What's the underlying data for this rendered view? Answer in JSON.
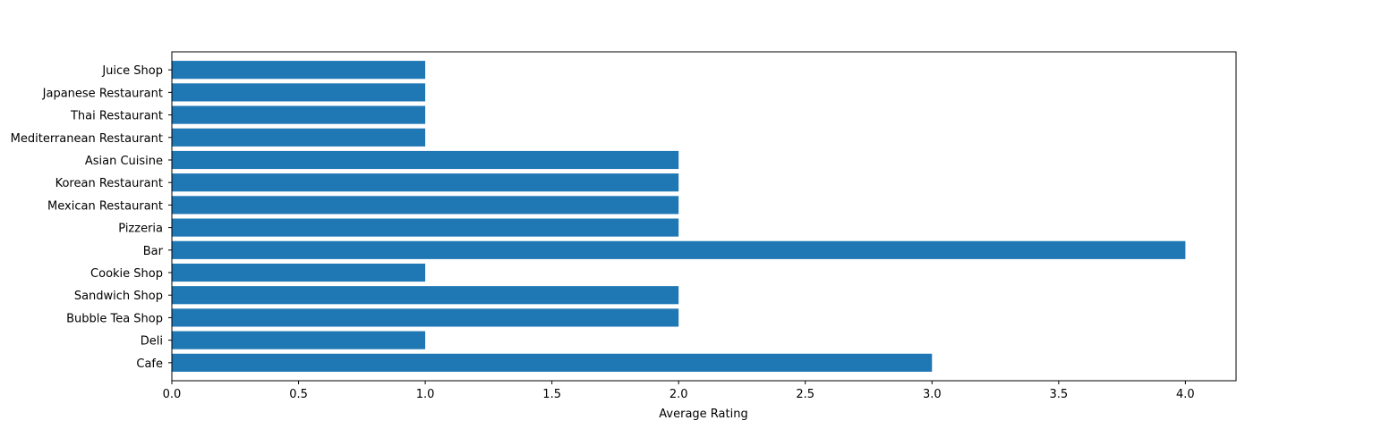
{
  "chart_data": {
    "type": "bar",
    "orientation": "horizontal",
    "title": "",
    "xlabel": "Average Rating",
    "ylabel": "",
    "xlim": [
      0,
      4.2
    ],
    "grid": false,
    "bar_color": "#1f77b4",
    "categories": [
      "Cafe",
      "Deli",
      "Bubble Tea Shop",
      "Sandwich Shop",
      "Cookie Shop",
      "Bar",
      "Pizzeria",
      "Mexican Restaurant",
      "Korean Restaurant",
      "Asian Cuisine ",
      "Mediterranean Restaurant",
      "Thai Restaurant",
      "Japanese Restaurant",
      "Juice Shop"
    ],
    "values": [
      3,
      1,
      2,
      2,
      1,
      4,
      2,
      2,
      2,
      2,
      1,
      1,
      1,
      1
    ],
    "x_ticks": [
      0.0,
      0.5,
      1.0,
      1.5,
      2.0,
      2.5,
      3.0,
      3.5,
      4.0
    ],
    "x_tick_labels": [
      "0.0",
      "0.5",
      "1.0",
      "1.5",
      "2.0",
      "2.5",
      "3.0",
      "3.5",
      "4.0"
    ]
  }
}
